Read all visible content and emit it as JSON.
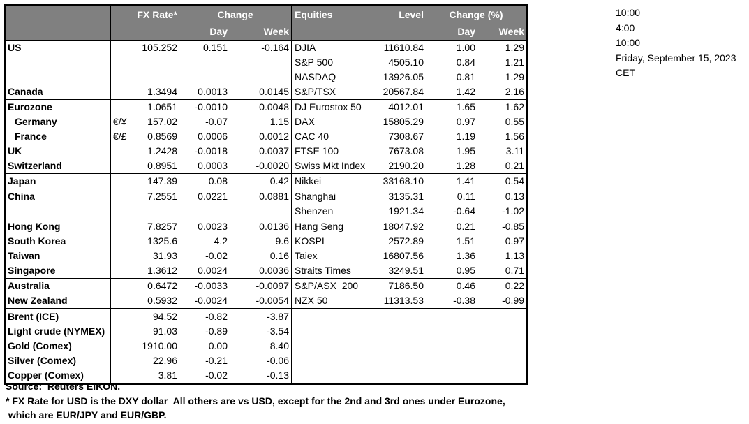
{
  "colors": {
    "header_bg": "#808080",
    "header_text": "#ffffff",
    "border": "#000000",
    "text": "#000000"
  },
  "timestamps": {
    "line1": "10:00",
    "line2": "4:00",
    "line3": "10:00",
    "date": "Friday, September 15, 2023",
    "timezone": "CET"
  },
  "table": {
    "fx_header": {
      "rate": "FX Rate*",
      "change": "Change",
      "day": "Day",
      "week": "Week"
    },
    "equities_header": {
      "name": "Equities",
      "level": "Level",
      "change": "Change (%)",
      "day": "Day",
      "week": "Week"
    },
    "rows": [
      {
        "label": "US",
        "pair": "",
        "rate": "105.252",
        "fx_day": "0.151",
        "fx_week": "-0.164",
        "equity": "DJIA",
        "level": "11610.84",
        "eq_day": "1.00",
        "eq_week": "1.29",
        "indent": false,
        "divider": ""
      },
      {
        "label": "",
        "pair": "",
        "rate": "",
        "fx_day": "",
        "fx_week": "",
        "equity": "S&P 500",
        "level": "4505.10",
        "eq_day": "0.84",
        "eq_week": "1.21",
        "indent": false,
        "divider": ""
      },
      {
        "label": "",
        "pair": "",
        "rate": "",
        "fx_day": "",
        "fx_week": "",
        "equity": "NASDAQ",
        "level": "13926.05",
        "eq_day": "0.81",
        "eq_week": "1.29",
        "indent": false,
        "divider": ""
      },
      {
        "label": "Canada",
        "pair": "",
        "rate": "1.3494",
        "fx_day": "0.0013",
        "fx_week": "0.0145",
        "equity": "S&P/TSX",
        "level": "20567.84",
        "eq_day": "1.42",
        "eq_week": "2.16",
        "indent": false,
        "divider": "thin"
      },
      {
        "label": "Eurozone",
        "pair": "",
        "rate": "1.0651",
        "fx_day": "-0.0010",
        "fx_week": "0.0048",
        "equity": "DJ Eurostox 50",
        "level": "4012.01",
        "eq_day": "1.65",
        "eq_week": "1.62",
        "indent": false,
        "divider": ""
      },
      {
        "label": "Germany",
        "pair": "€/¥",
        "rate": "157.02",
        "fx_day": "-0.07",
        "fx_week": "1.15",
        "equity": "DAX",
        "level": "15805.29",
        "eq_day": "0.97",
        "eq_week": "0.55",
        "indent": true,
        "divider": ""
      },
      {
        "label": "France",
        "pair": "€/£",
        "rate": "0.8569",
        "fx_day": "0.0006",
        "fx_week": "0.0012",
        "equity": "CAC 40",
        "level": "7308.67",
        "eq_day": "1.19",
        "eq_week": "1.56",
        "indent": true,
        "divider": ""
      },
      {
        "label": "UK",
        "pair": "",
        "rate": "1.2428",
        "fx_day": "-0.0018",
        "fx_week": "0.0037",
        "equity": "FTSE 100",
        "level": "7673.08",
        "eq_day": "1.95",
        "eq_week": "3.11",
        "indent": false,
        "divider": ""
      },
      {
        "label": "Switzerland",
        "pair": "",
        "rate": "0.8951",
        "fx_day": "0.0003",
        "fx_week": "-0.0020",
        "equity": "Swiss Mkt Index",
        "level": "2190.20",
        "eq_day": "1.28",
        "eq_week": "0.21",
        "indent": false,
        "divider": "thin"
      },
      {
        "label": "Japan",
        "pair": "",
        "rate": "147.39",
        "fx_day": "0.08",
        "fx_week": "0.42",
        "equity": "Nikkei",
        "level": "33168.10",
        "eq_day": "1.41",
        "eq_week": "0.54",
        "indent": false,
        "divider": "thin"
      },
      {
        "label": "China",
        "pair": "",
        "rate": "7.2551",
        "fx_day": "0.0221",
        "fx_week": "0.0881",
        "equity": "Shanghai",
        "level": "3135.31",
        "eq_day": "0.11",
        "eq_week": "0.13",
        "indent": false,
        "divider": ""
      },
      {
        "label": "",
        "pair": "",
        "rate": "",
        "fx_day": "",
        "fx_week": "",
        "equity": "Shenzen",
        "level": "1921.34",
        "eq_day": "-0.64",
        "eq_week": "-1.02",
        "indent": false,
        "divider": "thin"
      },
      {
        "label": "Hong Kong",
        "pair": "",
        "rate": "7.8257",
        "fx_day": "0.0023",
        "fx_week": "0.0136",
        "equity": "Hang Seng",
        "level": "18047.92",
        "eq_day": "0.21",
        "eq_week": "-0.85",
        "indent": false,
        "divider": ""
      },
      {
        "label": "South Korea",
        "pair": "",
        "rate": "1325.6",
        "fx_day": "4.2",
        "fx_week": "9.6",
        "equity": "KOSPI",
        "level": "2572.89",
        "eq_day": "1.51",
        "eq_week": "0.97",
        "indent": false,
        "divider": ""
      },
      {
        "label": "Taiwan",
        "pair": "",
        "rate": "31.93",
        "fx_day": "-0.02",
        "fx_week": "0.16",
        "equity": "Taiex",
        "level": "16807.56",
        "eq_day": "1.36",
        "eq_week": "1.13",
        "indent": false,
        "divider": ""
      },
      {
        "label": "Singapore",
        "pair": "",
        "rate": "1.3612",
        "fx_day": "0.0024",
        "fx_week": "0.0036",
        "equity": "Straits Times",
        "level": "3249.51",
        "eq_day": "0.95",
        "eq_week": "0.71",
        "indent": false,
        "divider": "thin"
      },
      {
        "label": "Australia",
        "pair": "",
        "rate": "0.6472",
        "fx_day": "-0.0033",
        "fx_week": "-0.0097",
        "equity": "S&P/ASX  200",
        "level": "7186.50",
        "eq_day": "0.46",
        "eq_week": "0.22",
        "indent": false,
        "divider": ""
      },
      {
        "label": "New Zealand",
        "pair": "",
        "rate": "0.5932",
        "fx_day": "-0.0024",
        "fx_week": "-0.0054",
        "equity": "NZX 50",
        "level": "11313.53",
        "eq_day": "-0.38",
        "eq_week": "-0.99",
        "indent": false,
        "divider": "thick"
      },
      {
        "label": "Brent (ICE)",
        "pair": "",
        "rate": "94.52",
        "fx_day": "-0.82",
        "fx_week": "-3.87",
        "equity": "",
        "level": "",
        "eq_day": "",
        "eq_week": "",
        "indent": false,
        "divider": ""
      },
      {
        "label": "Light crude (NYMEX)",
        "pair": "",
        "rate": "91.03",
        "fx_day": "-0.89",
        "fx_week": "-3.54",
        "equity": "",
        "level": "",
        "eq_day": "",
        "eq_week": "",
        "indent": false,
        "divider": ""
      },
      {
        "label": "Gold (Comex)",
        "pair": "",
        "rate": "1910.00",
        "fx_day": "0.00",
        "fx_week": "8.40",
        "equity": "",
        "level": "",
        "eq_day": "",
        "eq_week": "",
        "indent": false,
        "divider": ""
      },
      {
        "label": "Silver (Comex)",
        "pair": "",
        "rate": "22.96",
        "fx_day": "-0.21",
        "fx_week": "-0.06",
        "equity": "",
        "level": "",
        "eq_day": "",
        "eq_week": "",
        "indent": false,
        "divider": ""
      },
      {
        "label": "Copper (Comex)",
        "pair": "",
        "rate": "3.81",
        "fx_day": "-0.02",
        "fx_week": "-0.13",
        "equity": "",
        "level": "",
        "eq_day": "",
        "eq_week": "",
        "indent": false,
        "divider": ""
      }
    ]
  },
  "footer": {
    "source": "Source:  Reuters EIKON.",
    "footnote_line1": "* FX Rate for USD is the DXY dollar  All others are vs USD, except for the 2nd and 3rd ones under Eurozone,",
    "footnote_line2": " which are EUR/JPY and EUR/GBP."
  }
}
